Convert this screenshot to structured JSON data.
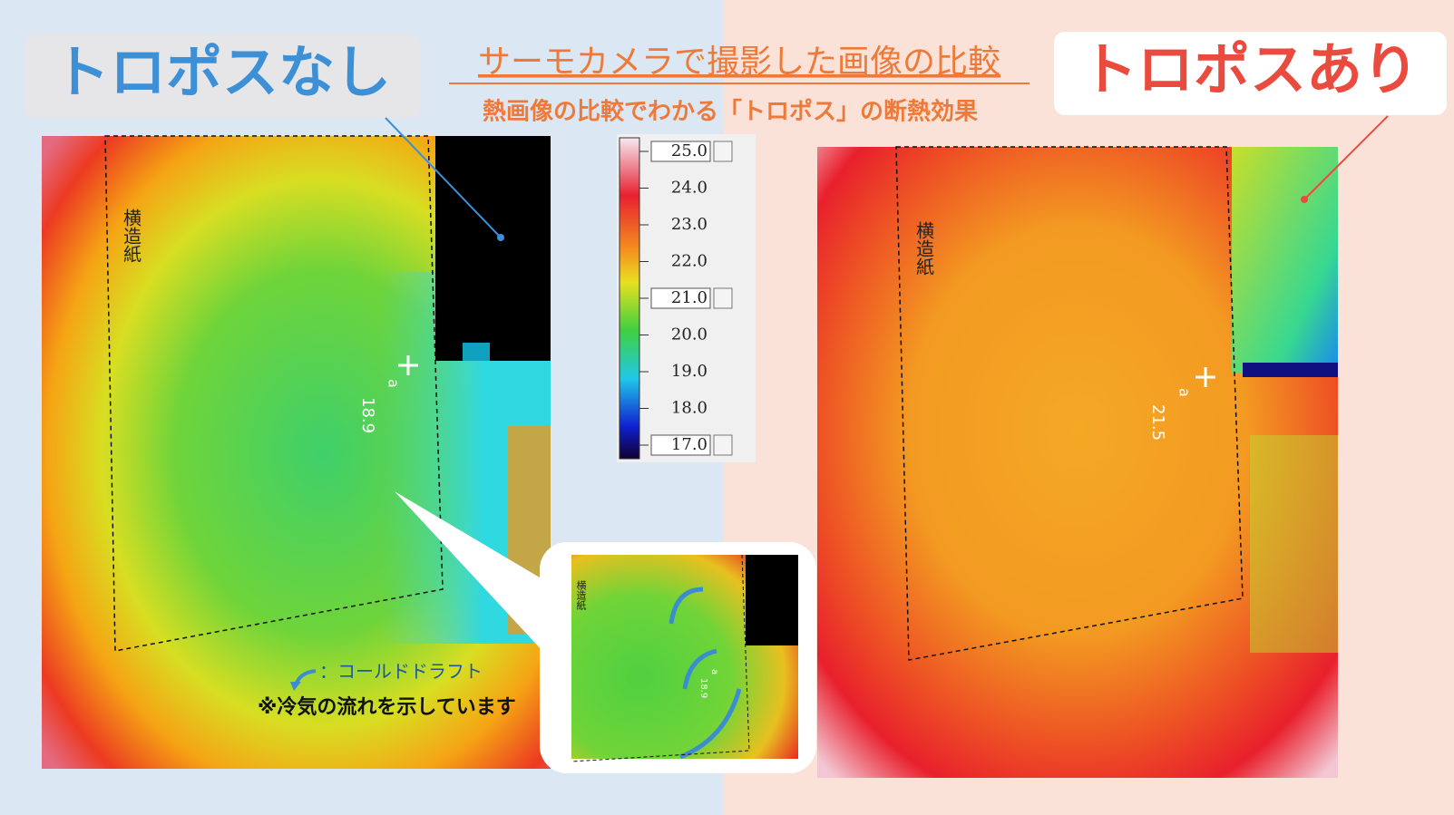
{
  "header": {
    "title": "サーモカメラで撮影した画像の比較",
    "subtitle": "熱画像の比較でわかる「トロポス」の断熱効果"
  },
  "left_panel": {
    "label": "トロポスなし",
    "paper_label": "横造紙",
    "point_label": "a",
    "point_value": "18.9",
    "legend": {
      "symbol_text": "：コールドドラフト",
      "note": "※冷気の流れを示しています"
    }
  },
  "right_panel": {
    "label": "トロポスあり",
    "paper_label": "横造紙",
    "point_label": "a",
    "point_value": "21.5"
  },
  "color_scale": {
    "ticks": [
      "25.0",
      "24.0",
      "23.0",
      "22.0",
      "21.0",
      "20.0",
      "19.0",
      "18.0",
      "17.0"
    ]
  },
  "inset": {
    "paper_label": "横造紙",
    "point_label": "a",
    "point_value": "18.9"
  }
}
